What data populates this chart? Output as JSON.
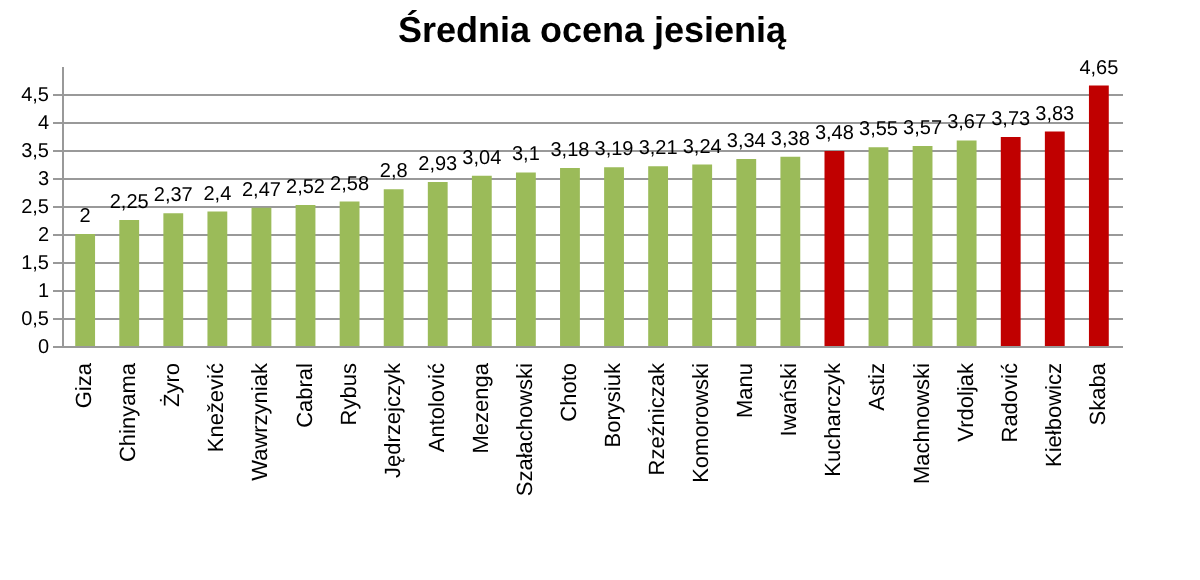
{
  "chart_data": {
    "type": "bar",
    "title": "Średnia ocena jesienią",
    "categories": [
      "Giza",
      "Chinyama",
      "Żyro",
      "Knežević",
      "Wawrzyniak",
      "Cabral",
      "Rybus",
      "Jędrzejczyk",
      "Antolović",
      "Mezenga",
      "Szałachowski",
      "Choto",
      "Borysiuk",
      "Rzeźniczak",
      "Komorowski",
      "Manu",
      "Iwański",
      "Kucharczyk",
      "Astiz",
      "Machnowski",
      "Vrdoljak",
      "Radović",
      "Kiełbowicz",
      "Skaba"
    ],
    "values": [
      2,
      2.25,
      2.37,
      2.4,
      2.47,
      2.52,
      2.58,
      2.8,
      2.93,
      3.04,
      3.1,
      3.18,
      3.19,
      3.21,
      3.24,
      3.34,
      3.38,
      3.48,
      3.55,
      3.57,
      3.67,
      3.73,
      3.83,
      4.65
    ],
    "value_labels": [
      "2",
      "2,25",
      "2,37",
      "2,4",
      "2,47",
      "2,52",
      "2,58",
      "2,8",
      "2,93",
      "3,04",
      "3,1",
      "3,18",
      "3,19",
      "3,21",
      "3,24",
      "3,34",
      "3,38",
      "3,48",
      "3,55",
      "3,57",
      "3,67",
      "3,73",
      "3,83",
      "4,65"
    ],
    "colors": [
      "#9bbb59",
      "#9bbb59",
      "#9bbb59",
      "#9bbb59",
      "#9bbb59",
      "#9bbb59",
      "#9bbb59",
      "#9bbb59",
      "#9bbb59",
      "#9bbb59",
      "#9bbb59",
      "#9bbb59",
      "#9bbb59",
      "#9bbb59",
      "#9bbb59",
      "#9bbb59",
      "#9bbb59",
      "#c00000",
      "#9bbb59",
      "#9bbb59",
      "#9bbb59",
      "#c00000",
      "#c00000",
      "#c00000"
    ],
    "ylim": [
      0,
      5
    ],
    "yticks": [
      0,
      {
        "value": 0.5,
        "label": "0,5"
      },
      1,
      {
        "value": 1.5,
        "label": "1,5"
      },
      2,
      {
        "value": 2.5,
        "label": "2,5"
      },
      3,
      {
        "value": 3.5,
        "label": "3,5"
      },
      4,
      {
        "value": 4.5,
        "label": "4,5"
      }
    ],
    "grid": "y"
  }
}
